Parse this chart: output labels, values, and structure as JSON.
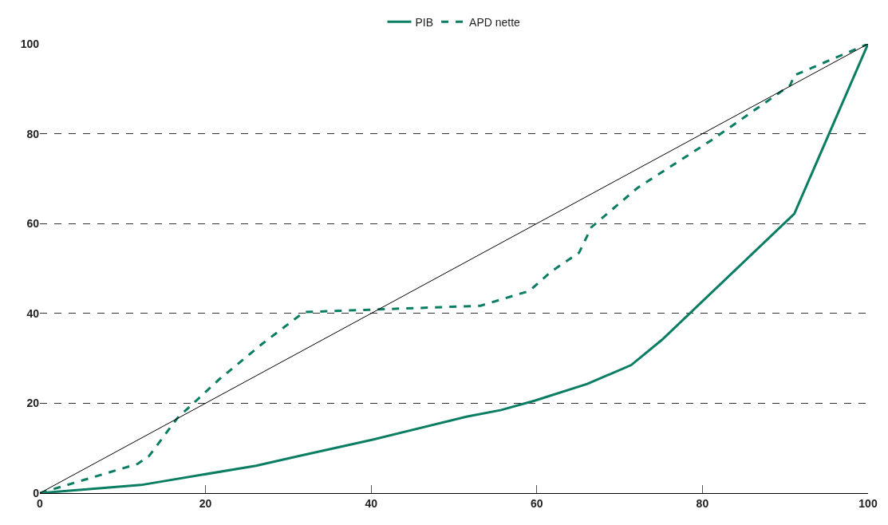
{
  "chart_data": {
    "type": "line",
    "legend": "top",
    "grid": "y",
    "xlim": [
      0,
      100
    ],
    "ylim": [
      0,
      100
    ],
    "xticks": [
      0,
      20,
      40,
      60,
      80,
      100
    ],
    "yticks": [
      0,
      20,
      40,
      60,
      80,
      100
    ],
    "series": [
      {
        "name": "PIB",
        "color": "#0a7d63",
        "line_style": "solid",
        "x": [
          0,
          12.2,
          26.1,
          31.4,
          40.2,
          51.5,
          55.7,
          59.8,
          66.1,
          71.4,
          75.1,
          91.1,
          100
        ],
        "values": [
          0,
          1.8,
          6.1,
          8.3,
          11.9,
          17,
          18.5,
          20.6,
          24.3,
          28.5,
          34.1,
          62.2,
          100
        ]
      },
      {
        "name": "APD nette",
        "color": "#0a7d63",
        "line_style": "dashed",
        "x": [
          0,
          11.8,
          13.2,
          16.6,
          21.7,
          26.9,
          31.9,
          53.2,
          59.1,
          61.8,
          65.1,
          66.6,
          72.2,
          81.2,
          90.6,
          91.1,
          100
        ],
        "values": [
          0,
          6.5,
          8.3,
          16.7,
          25.4,
          33.3,
          40.3,
          41.7,
          45,
          49.4,
          53.5,
          59.2,
          68,
          78.7,
          90.8,
          93,
          100
        ]
      },
      {
        "color": "#000000",
        "line_style": "solid",
        "x": [
          0,
          100
        ],
        "values": [
          0,
          100
        ]
      }
    ]
  }
}
